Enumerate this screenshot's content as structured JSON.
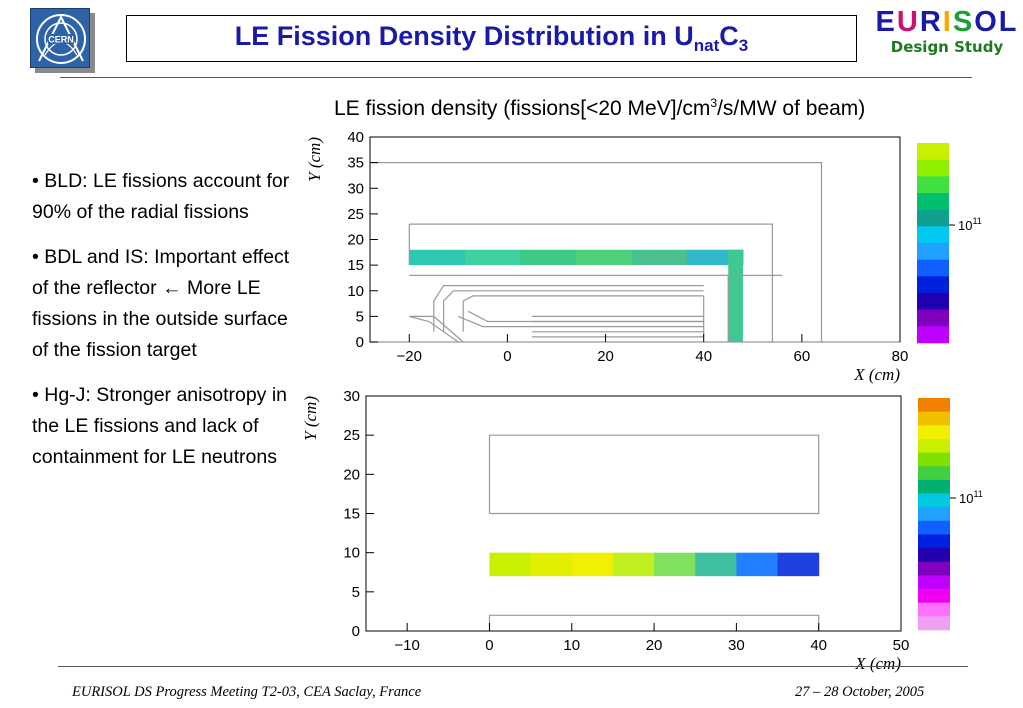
{
  "header": {
    "title_prefix": "LE Fission Density Distribution in U",
    "title_sub": "nat",
    "title_suffix": "C",
    "title_sub2": "3",
    "cern_logo_icon": "cern-logo-icon",
    "eurisol_logo": {
      "word_letters": [
        "E",
        "U",
        "R",
        "I",
        "S",
        "O",
        "L"
      ],
      "letter_colors": [
        "#1a1aa8",
        "#d0106e",
        "#1a1aa8",
        "#f2a900",
        "#1a9e3a",
        "#1a1aa8",
        "#1a1aa8"
      ],
      "subtitle": "Design Study"
    }
  },
  "plot_caption": {
    "prefix": "LE fission density (fissions[<20 MeV]/cm",
    "sup": "3",
    "suffix": "/s/MW of beam)"
  },
  "bullets": [
    "•  BLD: LE fissions account for 90% of the radial fissions",
    "• BDL and IS: Important effect of the reflector ← More LE fissions in the outside surface of the fission target",
    "• Hg-J: Stronger anisotropy in the LE fissions and lack of containment for LE neutrons"
  ],
  "chart_data": [
    {
      "type": "heatmap",
      "xlabel": "X (cm)",
      "ylabel": "Y (cm)",
      "xlim": [
        -28,
        80
      ],
      "ylim": [
        0,
        40
      ],
      "x_ticks": [
        -20,
        0,
        20,
        40,
        60,
        80
      ],
      "y_ticks": [
        0,
        5,
        10,
        15,
        20,
        25,
        30,
        35,
        40
      ],
      "colorbar_label": "10^11",
      "colorbar_colors": [
        "#c8f000",
        "#90f000",
        "#40e040",
        "#00c070",
        "#10a090",
        "#00c8f0",
        "#20a0ff",
        "#1060ff",
        "#0020e0",
        "#2000b0",
        "#8000c0",
        "#c000ff"
      ],
      "geometry_lines": [
        [
          [
            -28,
            35
          ],
          [
            64,
            35
          ],
          [
            64,
            0
          ]
        ],
        [
          [
            -20,
            23
          ],
          [
            54,
            23
          ],
          [
            54,
            0
          ]
        ],
        [
          [
            -20,
            23
          ],
          [
            -20,
            15
          ]
        ],
        [
          [
            -20,
            13
          ],
          [
            56,
            13
          ]
        ],
        [
          [
            45,
            13
          ],
          [
            45,
            0
          ]
        ],
        [
          [
            -20,
            5
          ],
          [
            -15,
            5
          ],
          [
            -9,
            0
          ]
        ],
        [
          [
            -20,
            5
          ],
          [
            -16,
            4
          ],
          [
            -10,
            0
          ]
        ],
        [
          [
            -15,
            2
          ],
          [
            -15,
            8
          ],
          [
            -13,
            11
          ],
          [
            40,
            11
          ]
        ],
        [
          [
            -13,
            2
          ],
          [
            -13,
            8
          ],
          [
            -11,
            10
          ],
          [
            40,
            10
          ]
        ],
        [
          [
            -9,
            2
          ],
          [
            -9,
            8
          ],
          [
            -7,
            9
          ],
          [
            40,
            9
          ]
        ],
        [
          [
            -10,
            5
          ],
          [
            -5,
            3
          ],
          [
            40,
            3
          ]
        ],
        [
          [
            -8,
            6
          ],
          [
            -4,
            4
          ],
          [
            40,
            4
          ]
        ],
        [
          [
            5,
            5
          ],
          [
            40,
            5
          ]
        ],
        [
          [
            5,
            4
          ],
          [
            40,
            4
          ]
        ],
        [
          [
            5,
            2
          ],
          [
            40,
            2
          ]
        ],
        [
          [
            5,
            1
          ],
          [
            40,
            1
          ]
        ],
        [
          [
            40,
            9
          ],
          [
            40,
            1
          ]
        ],
        [
          [
            -28,
            0
          ],
          [
            80,
            0
          ]
        ]
      ],
      "fission_band": {
        "x": [
          -20,
          48
        ],
        "y": [
          15,
          18
        ]
      },
      "fission_leg": {
        "x": [
          45,
          48
        ],
        "y": [
          0,
          18
        ]
      },
      "band_colors": [
        "#2ec8b0",
        "#3ed0a0",
        "#40c888",
        "#50d078",
        "#48c090",
        "#30b8c8"
      ]
    },
    {
      "type": "heatmap",
      "xlabel": "X (cm)",
      "ylabel": "Y (cm)",
      "xlim": [
        -15,
        50
      ],
      "ylim": [
        0,
        30
      ],
      "x_ticks": [
        -10,
        0,
        10,
        20,
        30,
        40,
        50
      ],
      "y_ticks": [
        0,
        5,
        10,
        15,
        20,
        25,
        30
      ],
      "colorbar_label": "10^11",
      "colorbar_colors": [
        "#f08000",
        "#f0c000",
        "#f0f000",
        "#c8f000",
        "#80e000",
        "#40d040",
        "#00b070",
        "#00c8e0",
        "#20a0ff",
        "#1060ff",
        "#0020e0",
        "#2000b0",
        "#8000c0",
        "#c000ff",
        "#f000f0",
        "#ff70ff",
        "#f0a0f0"
      ],
      "geometry_lines": [
        [
          [
            0,
            15
          ],
          [
            40,
            15
          ],
          [
            40,
            25
          ],
          [
            0,
            25
          ],
          [
            0,
            15
          ]
        ],
        [
          [
            0,
            0
          ],
          [
            0,
            2
          ],
          [
            40,
            2
          ],
          [
            40,
            0
          ]
        ]
      ],
      "fission_band": {
        "x": [
          0,
          40
        ],
        "y": [
          7,
          10
        ]
      },
      "band_colors": [
        "#c8f000",
        "#e0f000",
        "#f0f000",
        "#c0f020",
        "#80e060",
        "#40c0a0",
        "#2080ff",
        "#2040e0"
      ]
    }
  ],
  "footer": {
    "left": "EURISOL DS Progress Meeting T2-03, CEA Saclay, France",
    "right": "27 – 28 October, 2005"
  }
}
